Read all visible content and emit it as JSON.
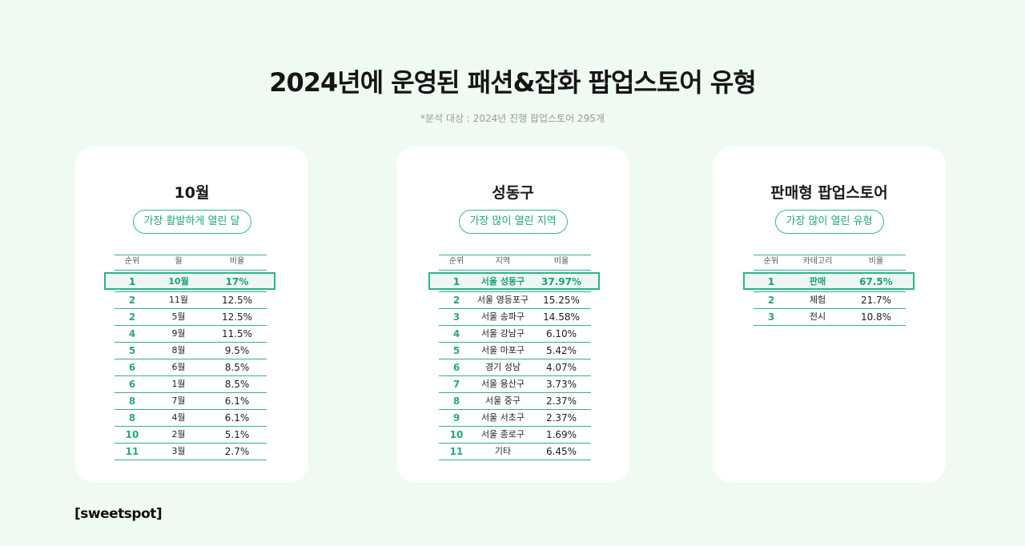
{
  "title": "2024년에 운영된 패션&잡화 팝업스토어 유형",
  "subtitle": "*분석 대상 : 2024년 진행 팝업스토어 295개",
  "logo": "[sweetspot]",
  "cards": [
    {
      "title": "10월",
      "pill": "가장 활발하게 열린 달",
      "headers": [
        "순위",
        "월",
        "비율"
      ],
      "rows": [
        {
          "rank": "1",
          "name": "10월",
          "ratio": "17%"
        },
        {
          "rank": "2",
          "name": "11월",
          "ratio": "12.5%"
        },
        {
          "rank": "2",
          "name": "5월",
          "ratio": "12.5%"
        },
        {
          "rank": "4",
          "name": "9월",
          "ratio": "11.5%"
        },
        {
          "rank": "5",
          "name": "8월",
          "ratio": "9.5%"
        },
        {
          "rank": "6",
          "name": "6월",
          "ratio": "8.5%"
        },
        {
          "rank": "6",
          "name": "1월",
          "ratio": "8.5%"
        },
        {
          "rank": "8",
          "name": "7월",
          "ratio": "6.1%"
        },
        {
          "rank": "8",
          "name": "4월",
          "ratio": "6.1%"
        },
        {
          "rank": "10",
          "name": "2월",
          "ratio": "5.1%"
        },
        {
          "rank": "11",
          "name": "3월",
          "ratio": "2.7%"
        }
      ]
    },
    {
      "title": "성동구",
      "pill": "가장 많이 열린 지역",
      "headers": [
        "순위",
        "지역",
        "비율"
      ],
      "rows": [
        {
          "rank": "1",
          "name": "서울 성동구",
          "ratio": "37.97%"
        },
        {
          "rank": "2",
          "name": "서울 영등포구",
          "ratio": "15.25%"
        },
        {
          "rank": "3",
          "name": "서울 송파구",
          "ratio": "14.58%"
        },
        {
          "rank": "4",
          "name": "서울 강남구",
          "ratio": "6.10%"
        },
        {
          "rank": "5",
          "name": "서울 마포구",
          "ratio": "5.42%"
        },
        {
          "rank": "6",
          "name": "경기 성남",
          "ratio": "4.07%"
        },
        {
          "rank": "7",
          "name": "서울 용산구",
          "ratio": "3.73%"
        },
        {
          "rank": "8",
          "name": "서울 중구",
          "ratio": "2.37%"
        },
        {
          "rank": "9",
          "name": "서울 서초구",
          "ratio": "2.37%"
        },
        {
          "rank": "10",
          "name": "서울 종로구",
          "ratio": "1.69%"
        },
        {
          "rank": "11",
          "name": "기타",
          "ratio": "6.45%"
        }
      ]
    },
    {
      "title": "판매형 팝업스토어",
      "pill": "가장 많이 열린 유형",
      "headers": [
        "순위",
        "카테고리",
        "비율"
      ],
      "rows": [
        {
          "rank": "1",
          "name": "판매",
          "ratio": "67.5%"
        },
        {
          "rank": "2",
          "name": "체험",
          "ratio": "21.7%"
        },
        {
          "rank": "3",
          "name": "전시",
          "ratio": "10.8%"
        }
      ]
    }
  ]
}
